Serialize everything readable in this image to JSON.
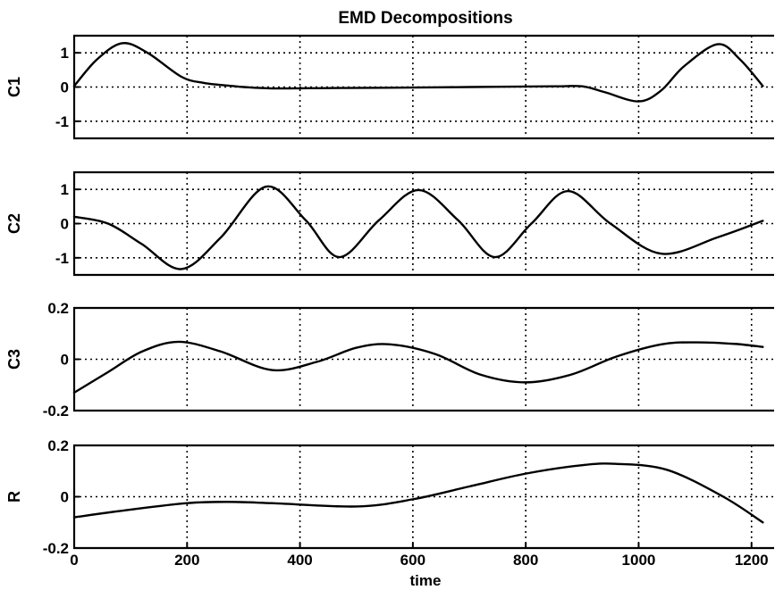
{
  "chart_data": {
    "type": "line",
    "title": "EMD Decompositions",
    "xlabel": "time",
    "x_ticks": [
      "0",
      "200",
      "400",
      "600",
      "800",
      "1000",
      "1200"
    ],
    "grid": true,
    "panels": [
      {
        "ylabel": "C1",
        "ylim": [
          -1.5,
          1.5
        ],
        "y_ticks": [
          {
            "v": 1,
            "label": "1"
          },
          {
            "v": 0,
            "label": "0"
          },
          {
            "v": -1,
            "label": "-1"
          }
        ],
        "series": [
          {
            "x": [
              0,
              40,
              85,
              130,
              190,
              230,
              280,
              300,
              350,
              450,
              550,
              700,
              850,
              900,
              940,
              1000,
              1040,
              1080,
              1140,
              1180,
              1220
            ],
            "y": [
              0.03,
              0.8,
              1.28,
              1.0,
              0.3,
              0.12,
              0.03,
              0.0,
              -0.04,
              -0.03,
              -0.02,
              0.0,
              0.02,
              0.02,
              -0.15,
              -0.42,
              -0.1,
              0.6,
              1.25,
              0.8,
              0.03
            ]
          }
        ]
      },
      {
        "ylabel": "C2",
        "ylim": [
          -1.5,
          1.5
        ],
        "y_ticks": [
          {
            "v": 1,
            "label": "1"
          },
          {
            "v": 0,
            "label": "0"
          },
          {
            "v": -1,
            "label": "-1"
          }
        ],
        "series": [
          {
            "x": [
              0,
              60,
              120,
              190,
              260,
              340,
              410,
              470,
              540,
              610,
              680,
              745,
              810,
              875,
              950,
              1040,
              1140,
              1220
            ],
            "y": [
              0.2,
              0.0,
              -0.6,
              -1.33,
              -0.4,
              1.08,
              0.1,
              -0.98,
              0.1,
              0.98,
              0.1,
              -0.98,
              0.0,
              0.95,
              0.0,
              -0.88,
              -0.4,
              0.08
            ]
          }
        ]
      },
      {
        "ylabel": "C3",
        "ylim": [
          -0.2,
          0.2
        ],
        "y_ticks": [
          {
            "v": 0.2,
            "label": "0.2"
          },
          {
            "v": 0,
            "label": "0"
          },
          {
            "v": -0.2,
            "label": "-0.2"
          }
        ],
        "series": [
          {
            "x": [
              0,
              60,
              120,
              185,
              260,
              350,
              430,
              500,
              560,
              640,
              720,
              800,
              880,
              960,
              1040,
              1100,
              1170,
              1220
            ],
            "y": [
              -0.13,
              -0.05,
              0.03,
              0.068,
              0.03,
              -0.042,
              -0.01,
              0.045,
              0.058,
              0.02,
              -0.06,
              -0.09,
              -0.06,
              0.01,
              0.058,
              0.066,
              0.06,
              0.048
            ]
          }
        ]
      },
      {
        "ylabel": "R",
        "ylim": [
          -0.2,
          0.2
        ],
        "y_ticks": [
          {
            "v": 0.2,
            "label": "0.2"
          },
          {
            "v": 0,
            "label": "0"
          },
          {
            "v": -0.2,
            "label": "-0.2"
          }
        ],
        "series": [
          {
            "x": [
              0,
              100,
              200,
              270,
              350,
              500,
              600,
              700,
              800,
              900,
              960,
              1050,
              1150,
              1220
            ],
            "y": [
              -0.08,
              -0.05,
              -0.025,
              -0.02,
              -0.025,
              -0.038,
              -0.01,
              0.04,
              0.09,
              0.123,
              0.128,
              0.105,
              0.0,
              -0.1
            ]
          }
        ]
      }
    ]
  }
}
